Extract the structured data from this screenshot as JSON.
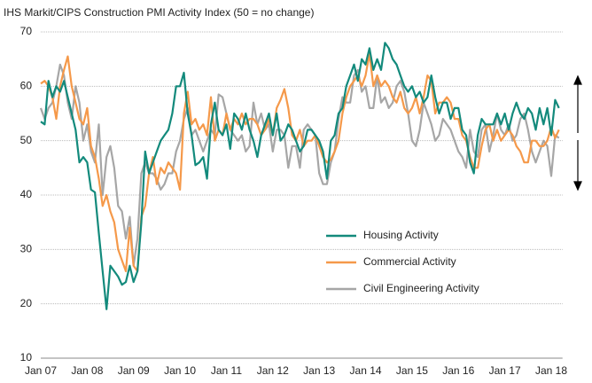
{
  "chart_data": {
    "type": "line",
    "title": "IHS Markit/CIPS Construction PMI Activity Index  (50 = no change)",
    "categories": [
      "Jan 07",
      null,
      null,
      null,
      null,
      null,
      null,
      null,
      null,
      null,
      null,
      null,
      "Jan 08",
      null,
      null,
      null,
      null,
      null,
      null,
      null,
      null,
      null,
      null,
      null,
      "Jan 09",
      null,
      null,
      null,
      null,
      null,
      null,
      null,
      null,
      null,
      null,
      null,
      "Jan 10",
      null,
      null,
      null,
      null,
      null,
      null,
      null,
      null,
      null,
      null,
      null,
      "Jan 11",
      null,
      null,
      null,
      null,
      null,
      null,
      null,
      null,
      null,
      null,
      null,
      "Jan 12",
      null,
      null,
      null,
      null,
      null,
      null,
      null,
      null,
      null,
      null,
      null,
      "Jan 13",
      null,
      null,
      null,
      null,
      null,
      null,
      null,
      null,
      null,
      null,
      null,
      "Jan 14",
      null,
      null,
      null,
      null,
      null,
      null,
      null,
      null,
      null,
      null,
      null,
      "Jan 15",
      null,
      null,
      null,
      null,
      null,
      null,
      null,
      null,
      null,
      null,
      null,
      "Jan 16",
      null,
      null,
      null,
      null,
      null,
      null,
      null,
      null,
      null,
      null,
      null,
      "Jan 17",
      null,
      null,
      null,
      null,
      null,
      null,
      null,
      null,
      null,
      null,
      null,
      "Jan 18",
      null,
      null
    ],
    "series": [
      {
        "name": "Housing Activity",
        "color": "#138a7c",
        "values": [
          53.5,
          53,
          61,
          58,
          60,
          59,
          61,
          58,
          55,
          52,
          46,
          47,
          46,
          41,
          40.5,
          33,
          26,
          19,
          27,
          26,
          25,
          23.5,
          24,
          27,
          24,
          26,
          35,
          48,
          44,
          46,
          48,
          50,
          51,
          52,
          55,
          60,
          60,
          62.5,
          55,
          51,
          45.5,
          46,
          47,
          43,
          53,
          57,
          52,
          51,
          53,
          48.5,
          55,
          54,
          52,
          55,
          52,
          50,
          47,
          51,
          53,
          55,
          51,
          55,
          50,
          51,
          53,
          52,
          50,
          48,
          49,
          52,
          52,
          51,
          50,
          48,
          43,
          50,
          51,
          55,
          56,
          60,
          62,
          64,
          61,
          65,
          64,
          67,
          63,
          65,
          63,
          68,
          67,
          65,
          64,
          62,
          60,
          59,
          60,
          58,
          59,
          57,
          58,
          62,
          58,
          55,
          57,
          57,
          54,
          56,
          56,
          52,
          51,
          46,
          44,
          51,
          54,
          53,
          53,
          53,
          55,
          53,
          55,
          52,
          55,
          57,
          55,
          54,
          56,
          55,
          52,
          56,
          53,
          56,
          51,
          57.5,
          56
        ]
      },
      {
        "name": "Commercial Activity",
        "color": "#f5994a",
        "values": [
          60.5,
          61,
          60,
          58,
          54,
          60,
          63,
          65.5,
          60,
          57,
          54,
          53,
          56,
          49,
          47,
          43,
          38,
          40,
          37,
          35,
          30,
          28,
          26,
          34,
          27,
          26,
          36,
          38,
          44,
          47,
          42,
          45,
          44,
          46,
          45,
          44,
          41,
          55,
          59,
          53,
          54,
          52,
          53,
          51,
          58,
          50,
          52,
          51,
          55,
          52,
          54,
          53,
          55,
          53,
          54,
          54,
          53,
          51,
          52,
          54,
          51,
          56,
          57.5,
          59.5,
          56,
          51,
          50,
          52,
          49,
          50,
          50,
          51,
          49,
          47,
          46,
          46.5,
          48,
          50,
          55,
          58,
          60,
          61,
          62,
          60,
          62,
          66,
          60,
          62,
          60,
          61,
          60,
          58,
          57,
          59,
          56,
          55,
          56,
          58,
          55,
          58,
          62,
          61,
          55,
          57,
          57,
          58,
          57,
          54,
          54,
          51,
          50,
          47,
          45,
          45,
          49,
          52,
          53,
          50,
          52,
          50,
          51,
          52,
          51,
          49,
          48,
          46,
          46,
          50,
          50,
          49,
          49,
          50,
          52.5,
          50.5,
          52
        ]
      },
      {
        "name": "Civil Engineering Activity",
        "color": "#a6a6a6",
        "values": [
          56,
          54,
          56,
          57,
          60,
          64,
          62,
          57,
          54,
          60,
          57,
          50,
          53,
          48,
          46,
          53,
          40,
          47,
          49,
          45,
          38,
          37,
          32,
          36,
          27,
          32,
          44,
          46,
          44,
          44,
          43,
          41,
          42,
          44,
          44,
          48,
          50,
          54,
          56,
          51,
          52,
          50,
          48,
          50,
          52,
          51,
          58.5,
          58,
          55,
          52,
          51,
          50,
          51,
          48,
          49,
          57,
          53,
          55,
          52,
          53,
          48,
          52,
          52,
          51,
          45,
          49,
          49,
          45,
          52,
          53,
          52,
          51,
          44,
          42,
          42,
          46,
          48,
          54,
          58,
          57,
          57,
          62,
          63,
          59,
          60,
          56,
          56,
          62,
          57,
          58,
          56,
          57,
          60,
          61,
          59,
          55,
          50,
          49,
          52,
          57,
          55,
          53,
          50,
          51,
          54,
          53,
          52,
          50,
          48,
          47,
          45,
          52,
          48,
          47,
          52,
          53,
          48,
          51,
          55,
          52,
          51,
          53,
          50,
          51,
          54,
          55,
          52,
          48,
          46,
          48,
          50,
          49,
          43.5,
          51,
          50.5
        ]
      }
    ],
    "ylim": [
      10,
      70
    ],
    "yticks": [
      10,
      20,
      30,
      40,
      50,
      60,
      70
    ],
    "grid": true
  }
}
